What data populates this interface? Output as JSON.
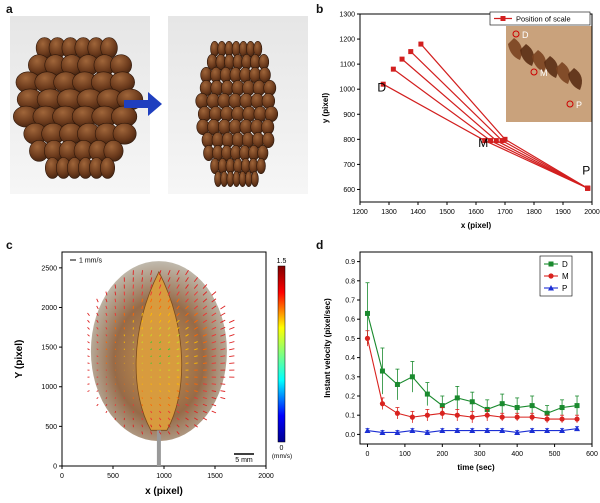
{
  "panels": {
    "a": {
      "letter": "a"
    },
    "b": {
      "letter": "b"
    },
    "c": {
      "letter": "c"
    },
    "d": {
      "letter": "d"
    }
  },
  "chart_data": [
    {
      "panel": "b",
      "type": "line",
      "xlabel": "x (pixel)",
      "ylabel": "y (pixel)",
      "xlim": [
        1200,
        2000
      ],
      "ylim": [
        550,
        1300
      ],
      "xticks": [
        1200,
        1300,
        1400,
        1500,
        1600,
        1700,
        1800,
        1900,
        2000
      ],
      "yticks": [
        600,
        700,
        800,
        900,
        1000,
        1100,
        1200,
        1300
      ],
      "legend": "Position of scale",
      "legend_position": "top-right",
      "series": [
        {
          "name": "Position of scale",
          "points": [
            [
              1280,
              1020
            ],
            [
              1630,
              795
            ],
            [
              1985,
              605
            ]
          ]
        },
        {
          "points": [
            [
              1315,
              1080
            ],
            [
              1650,
              795
            ],
            [
              1985,
              605
            ]
          ]
        },
        {
          "points": [
            [
              1345,
              1120
            ],
            [
              1670,
              795
            ],
            [
              1985,
              605
            ]
          ]
        },
        {
          "points": [
            [
              1375,
              1150
            ],
            [
              1690,
              795
            ],
            [
              1985,
              605
            ]
          ]
        },
        {
          "points": [
            [
              1410,
              1180
            ],
            [
              1700,
              800
            ],
            [
              1985,
              605
            ]
          ]
        }
      ],
      "annotations": [
        {
          "text": "D",
          "x": 1275,
          "y": 990
        },
        {
          "text": "M",
          "x": 1625,
          "y": 770
        },
        {
          "text": "P",
          "x": 1980,
          "y": 660
        }
      ],
      "inset_labels": [
        "D",
        "M",
        "P"
      ]
    },
    {
      "panel": "c",
      "type": "heatmap",
      "xlabel": "x (pixel)",
      "ylabel": "Y (pixel)",
      "xlim": [
        0,
        2000
      ],
      "ylim": [
        0,
        2700
      ],
      "xticks": [
        0,
        500,
        1000,
        1500,
        2000
      ],
      "yticks": [
        0,
        500,
        1000,
        1500,
        2000,
        2500
      ],
      "vector_scale_label": "1 mm/s",
      "colorbar": {
        "min": "0",
        "max": "1.5",
        "unit": "(mm/s)"
      },
      "scale_bar_label": "5 mm"
    },
    {
      "panel": "d",
      "type": "line",
      "xlabel": "time (sec)",
      "ylabel": "Instant velocity (pixel/sec)",
      "xlim": [
        -20,
        600
      ],
      "ylim": [
        -0.05,
        0.95
      ],
      "xticks": [
        0,
        100,
        200,
        300,
        400,
        500,
        600
      ],
      "yticks": [
        0.0,
        0.1,
        0.2,
        0.3,
        0.4,
        0.5,
        0.6,
        0.7,
        0.8,
        0.9
      ],
      "legend_position": "top-right",
      "x": [
        0,
        40,
        80,
        120,
        160,
        200,
        240,
        280,
        320,
        360,
        400,
        440,
        480,
        520,
        560
      ],
      "series": [
        {
          "name": "D",
          "color": "#1a8a2e",
          "marker": "square",
          "values": [
            0.63,
            0.33,
            0.26,
            0.3,
            0.21,
            0.15,
            0.19,
            0.17,
            0.13,
            0.16,
            0.14,
            0.15,
            0.11,
            0.14,
            0.15
          ],
          "errors": [
            0.16,
            0.12,
            0.08,
            0.08,
            0.06,
            0.05,
            0.06,
            0.05,
            0.05,
            0.05,
            0.05,
            0.05,
            0.04,
            0.04,
            0.05
          ]
        },
        {
          "name": "M",
          "color": "#d9231f",
          "marker": "circle",
          "values": [
            0.5,
            0.16,
            0.11,
            0.09,
            0.1,
            0.11,
            0.1,
            0.09,
            0.1,
            0.09,
            0.09,
            0.09,
            0.08,
            0.08,
            0.08
          ],
          "errors": [
            0.04,
            0.03,
            0.03,
            0.03,
            0.03,
            0.03,
            0.03,
            0.03,
            0.03,
            0.02,
            0.02,
            0.02,
            0.02,
            0.02,
            0.02
          ]
        },
        {
          "name": "P",
          "color": "#1c2fd4",
          "marker": "triangle",
          "values": [
            0.02,
            0.01,
            0.01,
            0.02,
            0.01,
            0.02,
            0.02,
            0.02,
            0.02,
            0.02,
            0.01,
            0.02,
            0.02,
            0.02,
            0.03
          ],
          "errors": [
            0.01,
            0.01,
            0.01,
            0.01,
            0.01,
            0.01,
            0.01,
            0.01,
            0.01,
            0.01,
            0.01,
            0.01,
            0.01,
            0.01,
            0.01
          ]
        }
      ]
    }
  ]
}
